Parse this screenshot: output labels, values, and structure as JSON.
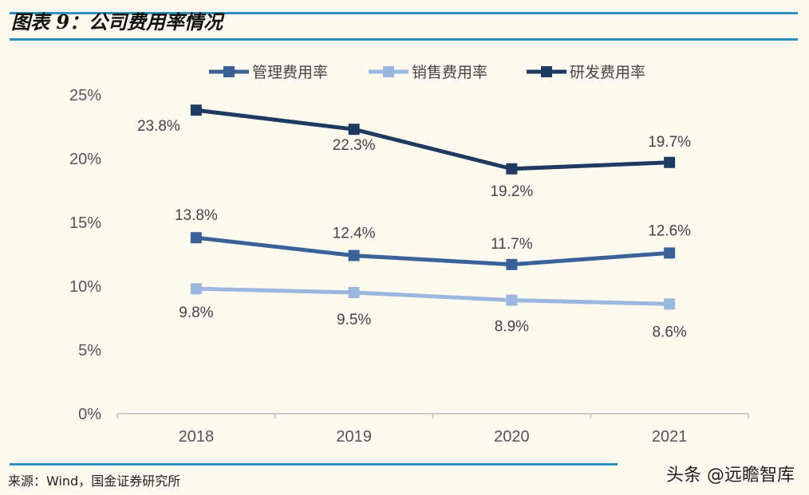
{
  "header": {
    "title": "图表 9：公司费用率情况"
  },
  "footer": {
    "source": "来源：Wind，国金证券研究所",
    "watermark": "头条 @远瞻智库"
  },
  "chart_data": {
    "type": "line",
    "title": "公司费用率情况",
    "categories": [
      "2018",
      "2019",
      "2020",
      "2021"
    ],
    "ylim": [
      0,
      25
    ],
    "yticks": [
      "0%",
      "5%",
      "10%",
      "15%",
      "20%",
      "25%"
    ],
    "ytick_values": [
      0,
      5,
      10,
      15,
      20,
      25
    ],
    "legend_position": "top",
    "grid": false,
    "series": [
      {
        "name": "管理费用率",
        "color": "#3a6299",
        "values": [
          13.8,
          12.4,
          11.7,
          12.6
        ],
        "labels": [
          "13.8%",
          "12.4%",
          "11.7%",
          "12.6%"
        ]
      },
      {
        "name": "销售费用率",
        "color": "#9bb7dd",
        "values": [
          9.8,
          9.5,
          8.9,
          8.6
        ],
        "labels": [
          "9.8%",
          "9.5%",
          "8.9%",
          "8.6%"
        ]
      },
      {
        "name": "研发费用率",
        "color": "#1e3a60",
        "values": [
          23.8,
          22.3,
          19.2,
          19.7
        ],
        "labels": [
          "23.8%",
          "22.3%",
          "19.2%",
          "19.7%"
        ]
      }
    ]
  }
}
